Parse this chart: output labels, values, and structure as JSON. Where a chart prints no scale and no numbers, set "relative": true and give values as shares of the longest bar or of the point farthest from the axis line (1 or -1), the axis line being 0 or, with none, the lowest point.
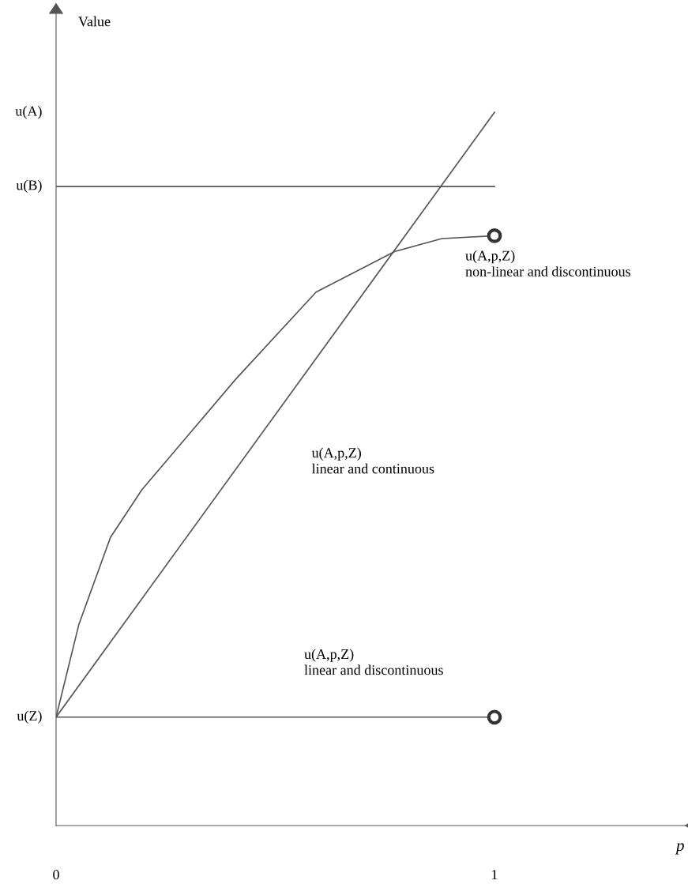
{
  "chart_data": {
    "type": "line",
    "xlabel": "p",
    "relative": true,
    "series": [
      {
        "color": "#555555",
        "x": [
          0,
          1
        ],
        "values": [
          0.896,
          0.896
        ]
      },
      {
        "color": "#555555",
        "x": [
          0,
          1
        ],
        "values": [
          0.152,
          1
        ]
      },
      {
        "color": "#555555",
        "x": [
          0,
          0.052,
          0.124,
          0.196,
          0.41,
          0.593,
          0.773,
          0.88,
          1
        ],
        "values": [
          0.152,
          0.282,
          0.404,
          0.471,
          0.626,
          0.748,
          0.805,
          0.823,
          0.827
        ]
      },
      {
        "color": "#555555",
        "x": [
          0,
          1
        ],
        "values": [
          0.152,
          0.152
        ]
      },
      {
        "type": "scatter",
        "color": "#333333",
        "x": [
          1,
          1
        ],
        "values": [
          0.827,
          0.152
        ],
        "marker": "circle"
      }
    ],
    "xlim": [
      0,
      1.436
    ],
    "xticks": [
      0,
      1
    ],
    "annotations": [
      "Value",
      "u(A)",
      "u(B)",
      "u(Z)",
      "u(A,p,Z)\nnon-linear and discontinuous",
      "u(A,p,Z)\nlinear and continuous",
      "u(A,p,Z)\nlinear and discontinuous"
    ],
    "grid": false,
    "legend": false
  }
}
